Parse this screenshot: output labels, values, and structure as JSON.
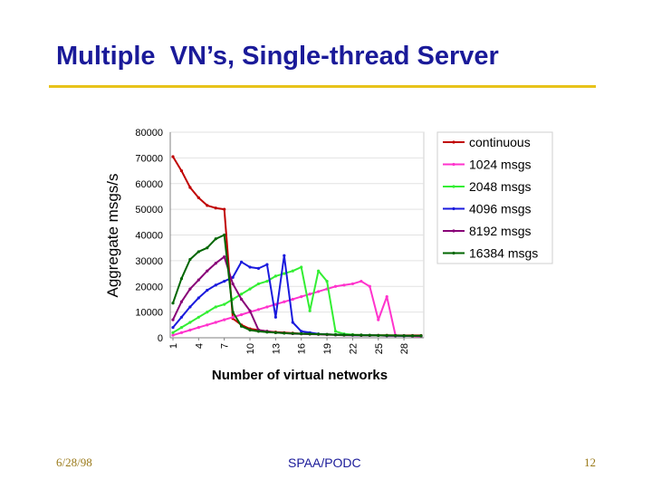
{
  "slide": {
    "title": "Multiple  VN’s, Single-thread Server",
    "footer_left": "6/28/98",
    "footer_center": "SPAA/PODC",
    "footer_right": "12"
  },
  "chart_data": {
    "type": "line",
    "title": "",
    "xlabel": "Number of virtual networks",
    "ylabel": "Aggregate msgs/s",
    "ylim": [
      0,
      80000
    ],
    "yticks": [
      0,
      10000,
      20000,
      30000,
      40000,
      50000,
      60000,
      70000,
      80000
    ],
    "xlim": [
      1,
      30
    ],
    "xticks": [
      1,
      4,
      7,
      10,
      13,
      16,
      19,
      22,
      25,
      28
    ],
    "series": [
      {
        "name": "continuous",
        "color": "#c00000",
        "x": [
          1,
          2,
          3,
          4,
          5,
          6,
          7,
          8,
          9,
          10,
          11,
          12,
          13,
          14,
          15,
          16,
          17,
          18,
          19,
          20,
          21,
          22,
          23,
          24,
          25,
          26,
          27,
          28,
          29,
          30
        ],
        "values": [
          70500,
          65000,
          58500,
          54500,
          51500,
          50500,
          50000,
          7500,
          5000,
          3500,
          3000,
          2500,
          2200,
          2000,
          1800,
          1600,
          1500,
          1400,
          1300,
          1200,
          1200,
          1100,
          1100,
          1000,
          1000,
          1000,
          900,
          900,
          900,
          900
        ]
      },
      {
        "name": "1024 msgs",
        "color": "#ff33cc",
        "x": [
          1,
          2,
          3,
          4,
          5,
          6,
          7,
          8,
          9,
          10,
          11,
          12,
          13,
          14,
          15,
          16,
          17,
          18,
          19,
          20,
          21,
          22,
          23,
          24,
          25,
          26,
          27,
          28,
          29,
          30
        ],
        "values": [
          1000,
          2000,
          3000,
          4000,
          5000,
          6000,
          7000,
          8000,
          9000,
          10000,
          11000,
          12000,
          13000,
          14000,
          15000,
          16000,
          17000,
          18000,
          19000,
          20000,
          20500,
          21000,
          22000,
          20000,
          7000,
          16000,
          1000,
          800,
          600,
          500
        ]
      },
      {
        "name": "2048 msgs",
        "color": "#33ee33",
        "x": [
          1,
          2,
          3,
          4,
          5,
          6,
          7,
          8,
          9,
          10,
          11,
          12,
          13,
          14,
          15,
          16,
          17,
          18,
          19,
          20,
          21,
          22,
          23,
          24,
          25,
          26,
          27,
          28,
          29,
          30
        ],
        "values": [
          2000,
          4000,
          6000,
          8000,
          10000,
          12000,
          13000,
          15000,
          17000,
          19000,
          21000,
          22000,
          24000,
          25000,
          26000,
          27500,
          10500,
          26000,
          22000,
          2500,
          1500,
          1200,
          1100,
          1000,
          900,
          900,
          800,
          800,
          700,
          700
        ]
      },
      {
        "name": "4096 msgs",
        "color": "#1a1add",
        "x": [
          1,
          2,
          3,
          4,
          5,
          6,
          7,
          8,
          9,
          10,
          11,
          12,
          13,
          14,
          15,
          16,
          17,
          18,
          19,
          20,
          21,
          22,
          23,
          24,
          25,
          26,
          27,
          28,
          29,
          30
        ],
        "values": [
          4000,
          8000,
          12000,
          15500,
          18500,
          20500,
          22000,
          23500,
          29500,
          27500,
          27000,
          28500,
          8000,
          32000,
          6000,
          2500,
          2000,
          1500,
          1300,
          1200,
          1100,
          1000,
          1000,
          900,
          900,
          800,
          800,
          700,
          700,
          700
        ]
      },
      {
        "name": "8192 msgs",
        "color": "#880077",
        "x": [
          1,
          2,
          3,
          4,
          5,
          6,
          7,
          8,
          9,
          10,
          11,
          12,
          13,
          14,
          15,
          16,
          17,
          18,
          19,
          20,
          21,
          22,
          23,
          24,
          25,
          26,
          27,
          28,
          29,
          30
        ],
        "values": [
          7000,
          14000,
          19000,
          22500,
          26000,
          29000,
          31500,
          21000,
          15000,
          10500,
          3000,
          2500,
          2000,
          1800,
          1600,
          1500,
          1400,
          1300,
          1200,
          1100,
          1000,
          1000,
          900,
          900,
          900,
          800,
          800,
          800,
          700,
          700
        ]
      },
      {
        "name": "16384 msgs",
        "color": "#006600",
        "x": [
          1,
          2,
          3,
          4,
          5,
          6,
          7,
          8,
          9,
          10,
          11,
          12,
          13,
          14,
          15,
          16,
          17,
          18,
          19,
          20,
          21,
          22,
          23,
          24,
          25,
          26,
          27,
          28,
          29,
          30
        ],
        "values": [
          13500,
          23000,
          30500,
          33500,
          35000,
          38500,
          40000,
          10000,
          4500,
          3000,
          2500,
          2200,
          2000,
          1800,
          1700,
          1600,
          1500,
          1400,
          1300,
          1200,
          1100,
          1100,
          1000,
          1000,
          900,
          900,
          900,
          800,
          800,
          800
        ]
      }
    ],
    "legend_position": "right"
  }
}
